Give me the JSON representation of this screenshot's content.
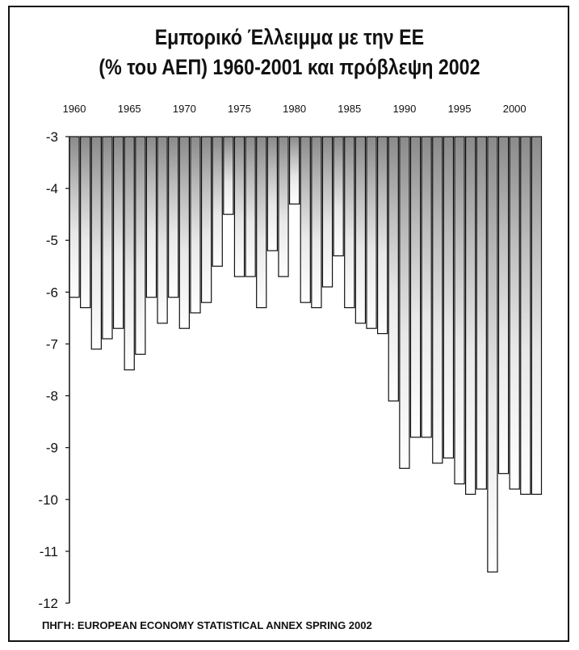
{
  "title_line1": "Εμπορικό Έλλειμμα με την ΕΕ",
  "title_line2": "(% του ΑΕΠ) 1960-2001 και πρόβλεψη 2002",
  "source": "ΠΗΓΗ: EUROPEAN ECONOMY STATISTICAL ANNEX SPRING 2002",
  "chart_data": {
    "type": "bar",
    "title": "Εμπορικό Έλλειμμα με την ΕΕ (% του ΑΕΠ) 1960-2001 και πρόβλεψη 2002",
    "xlabel": "",
    "ylabel": "",
    "x_tick_labels": [
      "1960",
      "1965",
      "1970",
      "1975",
      "1980",
      "1985",
      "1990",
      "1995",
      "2000"
    ],
    "y_tick_labels": [
      "-3",
      "-4",
      "-5",
      "-6",
      "-7",
      "-8",
      "-9",
      "-10",
      "-11",
      "-12"
    ],
    "ylim": [
      -12,
      -3
    ],
    "x_axis_position": "top",
    "grid": false,
    "categories": [
      1960,
      1961,
      1962,
      1963,
      1964,
      1965,
      1966,
      1967,
      1968,
      1969,
      1970,
      1971,
      1972,
      1973,
      1974,
      1975,
      1976,
      1977,
      1978,
      1979,
      1980,
      1981,
      1982,
      1983,
      1984,
      1985,
      1986,
      1987,
      1988,
      1989,
      1990,
      1991,
      1992,
      1993,
      1994,
      1995,
      1996,
      1997,
      1998,
      1999,
      2000,
      2001,
      2002
    ],
    "values": [
      -6.1,
      -6.3,
      -7.1,
      -6.9,
      -6.7,
      -7.5,
      -7.2,
      -6.1,
      -6.6,
      -6.1,
      -6.7,
      -6.4,
      -6.2,
      -5.5,
      -4.5,
      -5.7,
      -5.7,
      -6.3,
      -5.2,
      -5.7,
      -4.3,
      -6.2,
      -6.3,
      -5.9,
      -5.3,
      -6.3,
      -6.6,
      -6.7,
      -6.8,
      -8.1,
      -9.4,
      -8.8,
      -8.8,
      -9.3,
      -9.2,
      -9.7,
      -9.9,
      -9.8,
      -11.4,
      -9.5,
      -9.8,
      -9.9,
      -9.9
    ]
  }
}
